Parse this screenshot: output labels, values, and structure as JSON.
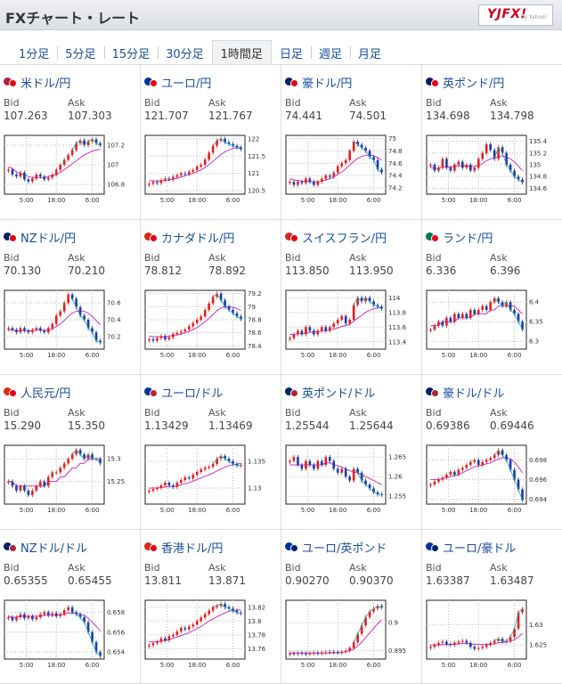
{
  "header": {
    "title": "FXチャート・レート",
    "logo_text": "YJFX!",
    "logo_sub": "by Yahoo!"
  },
  "tabs": [
    {
      "label": "1分足",
      "active": false
    },
    {
      "label": "5分足",
      "active": false
    },
    {
      "label": "15分足",
      "active": false
    },
    {
      "label": "30分足",
      "active": false
    },
    {
      "label": "1時間足",
      "active": true
    },
    {
      "label": "日足",
      "active": false
    },
    {
      "label": "週足",
      "active": false
    },
    {
      "label": "月足",
      "active": false
    }
  ],
  "labels": {
    "bid": "Bid",
    "ask": "Ask"
  },
  "x_ticks": [
    "5:00",
    "18:00",
    "6:00"
  ],
  "pairs": [
    {
      "name": "米ドル/円",
      "bid": "107.263",
      "ask": "107.303",
      "flags": [
        "#b22234",
        "#e60012"
      ],
      "y_ticks": [
        "107.2",
        "107",
        "106.8"
      ],
      "y_min": 106.7,
      "y_max": 107.3,
      "close": [
        106.95,
        106.9,
        106.88,
        106.92,
        106.85,
        106.83,
        106.86,
        106.9,
        106.88,
        106.85,
        106.87,
        106.9,
        106.95,
        107.0,
        107.05,
        107.1,
        107.15,
        107.22,
        107.25,
        107.2,
        107.24,
        107.26,
        107.22,
        107.2
      ],
      "ma": [
        106.98,
        106.96,
        106.93,
        106.91,
        106.9,
        106.88,
        106.87,
        106.87,
        106.87,
        106.87,
        106.88,
        106.89,
        106.9,
        106.92,
        106.95,
        106.98,
        107.01,
        107.04,
        107.07,
        107.1,
        107.12,
        107.14,
        107.15,
        107.16
      ]
    },
    {
      "name": "ユーロ/円",
      "bid": "121.707",
      "ask": "121.767",
      "flags": [
        "#003399",
        "#e60012"
      ],
      "y_ticks": [
        "122",
        "121.5",
        "121",
        "120.5"
      ],
      "y_min": 120.4,
      "y_max": 122.1,
      "close": [
        120.7,
        120.75,
        120.72,
        120.8,
        120.85,
        120.82,
        120.9,
        120.95,
        121.0,
        120.98,
        121.05,
        121.1,
        121.2,
        121.25,
        121.4,
        121.6,
        121.8,
        121.95,
        122.0,
        121.9,
        121.85,
        121.8,
        121.75,
        121.7
      ],
      "ma": [
        120.8,
        120.78,
        120.78,
        120.79,
        120.8,
        120.81,
        120.83,
        120.86,
        120.9,
        120.93,
        120.97,
        121.0,
        121.05,
        121.1,
        121.17,
        121.25,
        121.35,
        121.45,
        121.55,
        121.62,
        121.68,
        121.72,
        121.74,
        121.75
      ]
    },
    {
      "name": "豪ドル/円",
      "bid": "74.441",
      "ask": "74.501",
      "flags": [
        "#012169",
        "#e60012"
      ],
      "y_ticks": [
        "75",
        "74.8",
        "74.6",
        "74.4",
        "74.2"
      ],
      "y_min": 74.1,
      "y_max": 75.05,
      "close": [
        74.3,
        74.25,
        74.3,
        74.28,
        74.35,
        74.3,
        74.25,
        74.3,
        74.35,
        74.4,
        74.38,
        74.45,
        74.55,
        74.6,
        74.65,
        74.8,
        74.95,
        74.9,
        74.85,
        74.8,
        74.7,
        74.65,
        74.5,
        74.45
      ],
      "ma": [
        74.35,
        74.33,
        74.32,
        74.31,
        74.31,
        74.3,
        74.3,
        74.3,
        74.31,
        74.33,
        74.35,
        74.38,
        74.42,
        74.46,
        74.51,
        74.57,
        74.63,
        74.68,
        74.71,
        74.73,
        74.73,
        74.72,
        74.69,
        74.65
      ]
    },
    {
      "name": "英ポンド/円",
      "bid": "134.698",
      "ask": "134.798",
      "flags": [
        "#012169",
        "#e60012"
      ],
      "y_ticks": [
        "135.4",
        "135.2",
        "135",
        "134.8",
        "134.6"
      ],
      "y_min": 134.5,
      "y_max": 135.5,
      "close": [
        135.0,
        134.9,
        134.95,
        135.1,
        134.95,
        134.9,
        135.0,
        135.05,
        134.95,
        135.0,
        134.9,
        134.95,
        135.1,
        135.2,
        135.35,
        135.25,
        135.1,
        135.3,
        135.2,
        135.0,
        134.9,
        134.8,
        134.75,
        134.7
      ],
      "ma": [
        134.95,
        134.94,
        134.94,
        134.96,
        134.96,
        134.96,
        134.97,
        134.98,
        134.98,
        134.98,
        134.97,
        134.97,
        134.99,
        135.02,
        135.07,
        135.1,
        135.11,
        135.14,
        135.15,
        135.13,
        135.1,
        135.05,
        134.98,
        134.9
      ]
    },
    {
      "name": "NZドル/円",
      "bid": "70.130",
      "ask": "70.210",
      "flags": [
        "#012169",
        "#e60012"
      ],
      "y_ticks": [
        "70.6",
        "70.4",
        "70.2"
      ],
      "y_min": 70.05,
      "y_max": 70.75,
      "close": [
        70.3,
        70.28,
        70.25,
        70.3,
        70.27,
        70.25,
        70.28,
        70.3,
        70.27,
        70.25,
        70.3,
        70.35,
        70.45,
        70.5,
        70.6,
        70.7,
        70.65,
        70.55,
        70.45,
        70.4,
        70.3,
        70.25,
        70.15,
        70.13
      ],
      "ma": [
        70.28,
        70.28,
        70.27,
        70.27,
        70.27,
        70.27,
        70.27,
        70.28,
        70.28,
        70.27,
        70.28,
        70.29,
        70.32,
        70.35,
        70.39,
        70.44,
        70.48,
        70.5,
        70.51,
        70.5,
        70.48,
        70.44,
        70.39,
        70.34
      ]
    },
    {
      "name": "カナダドル/円",
      "bid": "78.812",
      "ask": "78.892",
      "flags": [
        "#d52b1e",
        "#e60012"
      ],
      "y_ticks": [
        "79.2",
        "79",
        "78.8",
        "78.6",
        "78.4"
      ],
      "y_min": 78.35,
      "y_max": 79.25,
      "close": [
        78.5,
        78.48,
        78.52,
        78.55,
        78.5,
        78.53,
        78.58,
        78.6,
        78.62,
        78.65,
        78.7,
        78.75,
        78.8,
        78.85,
        78.95,
        79.05,
        79.15,
        79.2,
        79.1,
        79.0,
        78.95,
        78.9,
        78.85,
        78.81
      ],
      "ma": [
        78.55,
        78.54,
        78.54,
        78.54,
        78.54,
        78.55,
        78.56,
        78.57,
        78.58,
        78.6,
        78.62,
        78.65,
        78.68,
        78.72,
        78.77,
        78.82,
        78.88,
        78.94,
        78.98,
        79.0,
        79.0,
        78.99,
        78.97,
        78.94
      ]
    },
    {
      "name": "スイスフラン/円",
      "bid": "113.850",
      "ask": "113.950",
      "flags": [
        "#d52b1e",
        "#e60012"
      ],
      "y_ticks": [
        "114",
        "113.8",
        "113.6",
        "113.4"
      ],
      "y_min": 113.3,
      "y_max": 114.1,
      "close": [
        113.45,
        113.5,
        113.55,
        113.5,
        113.6,
        113.55,
        113.5,
        113.55,
        113.6,
        113.55,
        113.6,
        113.65,
        113.7,
        113.75,
        113.65,
        113.7,
        113.9,
        114.0,
        113.95,
        114.0,
        113.95,
        113.9,
        113.88,
        113.85
      ],
      "ma": [
        113.5,
        113.5,
        113.51,
        113.51,
        113.52,
        113.53,
        113.53,
        113.54,
        113.55,
        113.55,
        113.56,
        113.57,
        113.59,
        113.61,
        113.62,
        113.64,
        113.68,
        113.72,
        113.76,
        113.8,
        113.83,
        113.85,
        113.86,
        113.87
      ]
    },
    {
      "name": "ランド/円",
      "bid": "6.336",
      "ask": "6.396",
      "flags": [
        "#007a4d",
        "#e60012"
      ],
      "y_ticks": [
        "6.4",
        "6.35",
        "6.3"
      ],
      "y_min": 6.28,
      "y_max": 6.43,
      "close": [
        6.33,
        6.34,
        6.35,
        6.34,
        6.36,
        6.35,
        6.37,
        6.36,
        6.37,
        6.36,
        6.38,
        6.37,
        6.38,
        6.39,
        6.38,
        6.4,
        6.41,
        6.4,
        6.39,
        6.4,
        6.38,
        6.37,
        6.35,
        6.33
      ],
      "ma": [
        6.34,
        6.34,
        6.34,
        6.35,
        6.35,
        6.35,
        6.35,
        6.36,
        6.36,
        6.36,
        6.36,
        6.37,
        6.37,
        6.37,
        6.37,
        6.38,
        6.38,
        6.39,
        6.39,
        6.39,
        6.39,
        6.39,
        6.38,
        6.37
      ]
    },
    {
      "name": "人民元/円",
      "bid": "15.290",
      "ask": "15.350",
      "flags": [
        "#de2910",
        "#e60012"
      ],
      "y_ticks": [
        "15.3",
        "15.25"
      ],
      "y_min": 15.2,
      "y_max": 15.33,
      "close": [
        15.25,
        15.24,
        15.23,
        15.24,
        15.23,
        15.22,
        15.23,
        15.24,
        15.25,
        15.24,
        15.26,
        15.27,
        15.27,
        15.28,
        15.29,
        15.3,
        15.31,
        15.32,
        15.31,
        15.3,
        15.31,
        15.3,
        15.3,
        15.29
      ],
      "ma": [
        15.25,
        15.25,
        15.24,
        15.24,
        15.24,
        15.24,
        15.24,
        15.24,
        15.24,
        15.24,
        15.25,
        15.25,
        15.25,
        15.26,
        15.26,
        15.27,
        15.28,
        15.28,
        15.29,
        15.29,
        15.3,
        15.3,
        15.3,
        15.3
      ]
    },
    {
      "name": "ユーロ/ドル",
      "bid": "1.13429",
      "ask": "1.13469",
      "flags": [
        "#003399",
        "#b22234"
      ],
      "y_ticks": [
        "1.135",
        "1.13"
      ],
      "y_min": 1.127,
      "y_max": 1.138,
      "close": [
        1.1295,
        1.1298,
        1.13,
        1.1305,
        1.131,
        1.1305,
        1.1302,
        1.131,
        1.1315,
        1.132,
        1.1318,
        1.1325,
        1.133,
        1.1335,
        1.1338,
        1.134,
        1.1345,
        1.1355,
        1.136,
        1.1355,
        1.135,
        1.1345,
        1.1342,
        1.1343
      ],
      "ma": [
        1.13,
        1.13,
        1.13,
        1.1301,
        1.1302,
        1.1303,
        1.1303,
        1.1304,
        1.1306,
        1.1308,
        1.131,
        1.1313,
        1.1316,
        1.1319,
        1.1322,
        1.1325,
        1.1328,
        1.1332,
        1.1336,
        1.1339,
        1.1342,
        1.1344,
        1.1345,
        1.1346
      ]
    },
    {
      "name": "英ポンド/ドル",
      "bid": "1.25544",
      "ask": "1.25644",
      "flags": [
        "#012169",
        "#b22234"
      ],
      "y_ticks": [
        "1.265",
        "1.26",
        "1.255"
      ],
      "y_min": 1.253,
      "y_max": 1.268,
      "close": [
        1.264,
        1.265,
        1.263,
        1.262,
        1.264,
        1.263,
        1.262,
        1.264,
        1.263,
        1.265,
        1.264,
        1.262,
        1.261,
        1.262,
        1.26,
        1.259,
        1.262,
        1.261,
        1.259,
        1.258,
        1.257,
        1.256,
        1.2555,
        1.2554
      ],
      "ma": [
        1.263,
        1.263,
        1.263,
        1.263,
        1.263,
        1.263,
        1.263,
        1.263,
        1.263,
        1.2635,
        1.2635,
        1.263,
        1.2628,
        1.2625,
        1.262,
        1.2615,
        1.2612,
        1.261,
        1.2605,
        1.26,
        1.2595,
        1.259,
        1.2585,
        1.258
      ]
    },
    {
      "name": "豪ドル/ドル",
      "bid": "0.69386",
      "ask": "0.69446",
      "flags": [
        "#012169",
        "#b22234"
      ],
      "y_ticks": [
        "0.698",
        "0.696",
        "0.694"
      ],
      "y_min": 0.6935,
      "y_max": 0.6995,
      "close": [
        0.6955,
        0.6958,
        0.696,
        0.6962,
        0.6965,
        0.6968,
        0.6965,
        0.697,
        0.6972,
        0.6975,
        0.6978,
        0.698,
        0.6975,
        0.6978,
        0.698,
        0.6982,
        0.6985,
        0.699,
        0.6985,
        0.698,
        0.697,
        0.696,
        0.695,
        0.6939
      ],
      "ma": [
        0.696,
        0.696,
        0.696,
        0.6961,
        0.6962,
        0.6963,
        0.6964,
        0.6965,
        0.6967,
        0.6969,
        0.6971,
        0.6973,
        0.6974,
        0.6975,
        0.6976,
        0.6977,
        0.6979,
        0.6981,
        0.6982,
        0.6982,
        0.6981,
        0.6978,
        0.6973,
        0.6967
      ]
    },
    {
      "name": "NZドル/ドル",
      "bid": "0.65355",
      "ask": "0.65455",
      "flags": [
        "#012169",
        "#b22234"
      ],
      "y_ticks": [
        "0.658",
        "0.656",
        "0.654"
      ],
      "y_min": 0.6533,
      "y_max": 0.6592,
      "close": [
        0.6575,
        0.6572,
        0.6575,
        0.6578,
        0.6574,
        0.6576,
        0.6573,
        0.6575,
        0.6578,
        0.658,
        0.6577,
        0.6579,
        0.6576,
        0.6578,
        0.6582,
        0.6585,
        0.658,
        0.6578,
        0.6575,
        0.657,
        0.656,
        0.655,
        0.654,
        0.6536
      ],
      "ma": [
        0.6576,
        0.6575,
        0.6575,
        0.6576,
        0.6576,
        0.6576,
        0.6576,
        0.6576,
        0.6576,
        0.6577,
        0.6577,
        0.6577,
        0.6577,
        0.6578,
        0.6578,
        0.6579,
        0.6579,
        0.6579,
        0.6578,
        0.6577,
        0.6574,
        0.657,
        0.6566,
        0.6561
      ]
    },
    {
      "name": "香港ドル/円",
      "bid": "13.811",
      "ask": "13.871",
      "flags": [
        "#de2910",
        "#e60012"
      ],
      "y_ticks": [
        "13.82",
        "13.8",
        "13.78",
        "13.76"
      ],
      "y_min": 13.745,
      "y_max": 13.83,
      "close": [
        13.765,
        13.768,
        13.77,
        13.775,
        13.772,
        13.778,
        13.78,
        13.785,
        13.79,
        13.788,
        13.792,
        13.795,
        13.8,
        13.805,
        13.81,
        13.815,
        13.82,
        13.822,
        13.825,
        13.82,
        13.818,
        13.815,
        13.812,
        13.811
      ],
      "ma": [
        13.77,
        13.77,
        13.77,
        13.771,
        13.772,
        13.773,
        13.775,
        13.777,
        13.779,
        13.781,
        13.783,
        13.786,
        13.789,
        13.792,
        13.796,
        13.8,
        13.803,
        13.806,
        13.809,
        13.812,
        13.814,
        13.815,
        13.816,
        13.816
      ]
    },
    {
      "name": "ユーロ/英ポンド",
      "bid": "0.90270",
      "ask": "0.90370",
      "flags": [
        "#003399",
        "#012169"
      ],
      "y_ticks": [
        "0.9",
        "0.895"
      ],
      "y_min": 0.8935,
      "y_max": 0.904,
      "close": [
        0.8945,
        0.8944,
        0.8946,
        0.8945,
        0.8944,
        0.8945,
        0.8946,
        0.8945,
        0.8946,
        0.8947,
        0.8948,
        0.8947,
        0.8946,
        0.8948,
        0.895,
        0.8955,
        0.8965,
        0.898,
        0.8995,
        0.901,
        0.902,
        0.9025,
        0.903,
        0.9027
      ],
      "ma": [
        0.8946,
        0.8946,
        0.8946,
        0.8946,
        0.8946,
        0.8946,
        0.8946,
        0.8946,
        0.8946,
        0.8946,
        0.8946,
        0.8946,
        0.8947,
        0.8947,
        0.8948,
        0.895,
        0.8953,
        0.8958,
        0.8965,
        0.8973,
        0.8982,
        0.899,
        0.8998,
        0.9005
      ]
    },
    {
      "name": "ユーロ/豪ドル",
      "bid": "1.63387",
      "ask": "1.63487",
      "flags": [
        "#003399",
        "#012169"
      ],
      "y_ticks": [
        "1.63",
        "1.625"
      ],
      "y_min": 1.6215,
      "y_max": 1.636,
      "close": [
        1.6245,
        1.625,
        1.6255,
        1.6258,
        1.6252,
        1.625,
        1.6255,
        1.6258,
        1.626,
        1.6255,
        1.6245,
        1.624,
        1.6242,
        1.6245,
        1.625,
        1.6255,
        1.626,
        1.6265,
        1.6258,
        1.626,
        1.627,
        1.629,
        1.633,
        1.6339
      ],
      "ma": [
        1.625,
        1.625,
        1.625,
        1.6251,
        1.6251,
        1.6251,
        1.6252,
        1.6253,
        1.6254,
        1.6254,
        1.6253,
        1.6252,
        1.6251,
        1.6251,
        1.6251,
        1.6252,
        1.6253,
        1.6255,
        1.6256,
        1.6257,
        1.6259,
        1.6263,
        1.627,
        1.6278
      ]
    }
  ]
}
